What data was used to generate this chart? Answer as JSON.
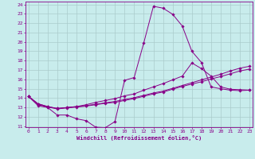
{
  "title": "",
  "xlabel": "Windchill (Refroidissement éolien,°C)",
  "bg_color": "#c8ecec",
  "line_color": "#880088",
  "grid_color": "#aacccc",
  "xmin": 0,
  "xmax": 23,
  "ymin": 11,
  "ymax": 24,
  "xticks": [
    0,
    1,
    2,
    3,
    4,
    5,
    6,
    7,
    8,
    9,
    10,
    11,
    12,
    13,
    14,
    15,
    16,
    17,
    18,
    19,
    20,
    21,
    22,
    23
  ],
  "yticks": [
    11,
    12,
    13,
    14,
    15,
    16,
    17,
    18,
    19,
    20,
    21,
    22,
    23,
    24
  ],
  "curve1_x": [
    0,
    1,
    2,
    3,
    4,
    5,
    6,
    7,
    8,
    9,
    10,
    11,
    12,
    13,
    14,
    15,
    16,
    17,
    18,
    19,
    20,
    21,
    22,
    23
  ],
  "curve1_y": [
    14.2,
    13.2,
    13.0,
    12.2,
    12.2,
    11.8,
    11.6,
    10.9,
    10.85,
    11.5,
    15.9,
    16.2,
    19.9,
    23.8,
    23.6,
    22.95,
    21.7,
    19.0,
    17.8,
    15.2,
    15.0,
    14.85,
    14.8,
    14.85
  ],
  "curve2_x": [
    0,
    1,
    2,
    3,
    4,
    5,
    6,
    7,
    8,
    9,
    10,
    11,
    12,
    13,
    14,
    15,
    16,
    17,
    18,
    19,
    20,
    21,
    22,
    23
  ],
  "curve2_y": [
    14.2,
    13.4,
    13.1,
    12.9,
    13.0,
    13.1,
    13.2,
    13.35,
    13.5,
    13.65,
    13.85,
    14.05,
    14.3,
    14.55,
    14.75,
    15.05,
    15.35,
    15.65,
    15.95,
    16.25,
    16.55,
    16.9,
    17.2,
    17.4
  ],
  "curve3_x": [
    0,
    1,
    2,
    3,
    4,
    5,
    6,
    7,
    8,
    9,
    10,
    11,
    12,
    13,
    14,
    15,
    16,
    17,
    18,
    19,
    20,
    21,
    22,
    23
  ],
  "curve3_y": [
    14.2,
    13.3,
    13.05,
    12.85,
    12.95,
    13.05,
    13.15,
    13.3,
    13.45,
    13.55,
    13.75,
    13.95,
    14.2,
    14.45,
    14.65,
    14.95,
    15.25,
    15.5,
    15.75,
    16.05,
    16.3,
    16.6,
    16.9,
    17.1
  ],
  "curve4_x": [
    0,
    1,
    2,
    3,
    4,
    5,
    6,
    7,
    8,
    9,
    10,
    11,
    12,
    13,
    14,
    15,
    16,
    17,
    18,
    19,
    20,
    21,
    22,
    23
  ],
  "curve4_y": [
    14.2,
    13.4,
    13.1,
    12.9,
    13.0,
    13.1,
    13.3,
    13.55,
    13.75,
    13.95,
    14.25,
    14.45,
    14.85,
    15.2,
    15.55,
    15.95,
    16.35,
    17.75,
    17.15,
    16.35,
    15.2,
    14.95,
    14.9,
    14.85
  ]
}
